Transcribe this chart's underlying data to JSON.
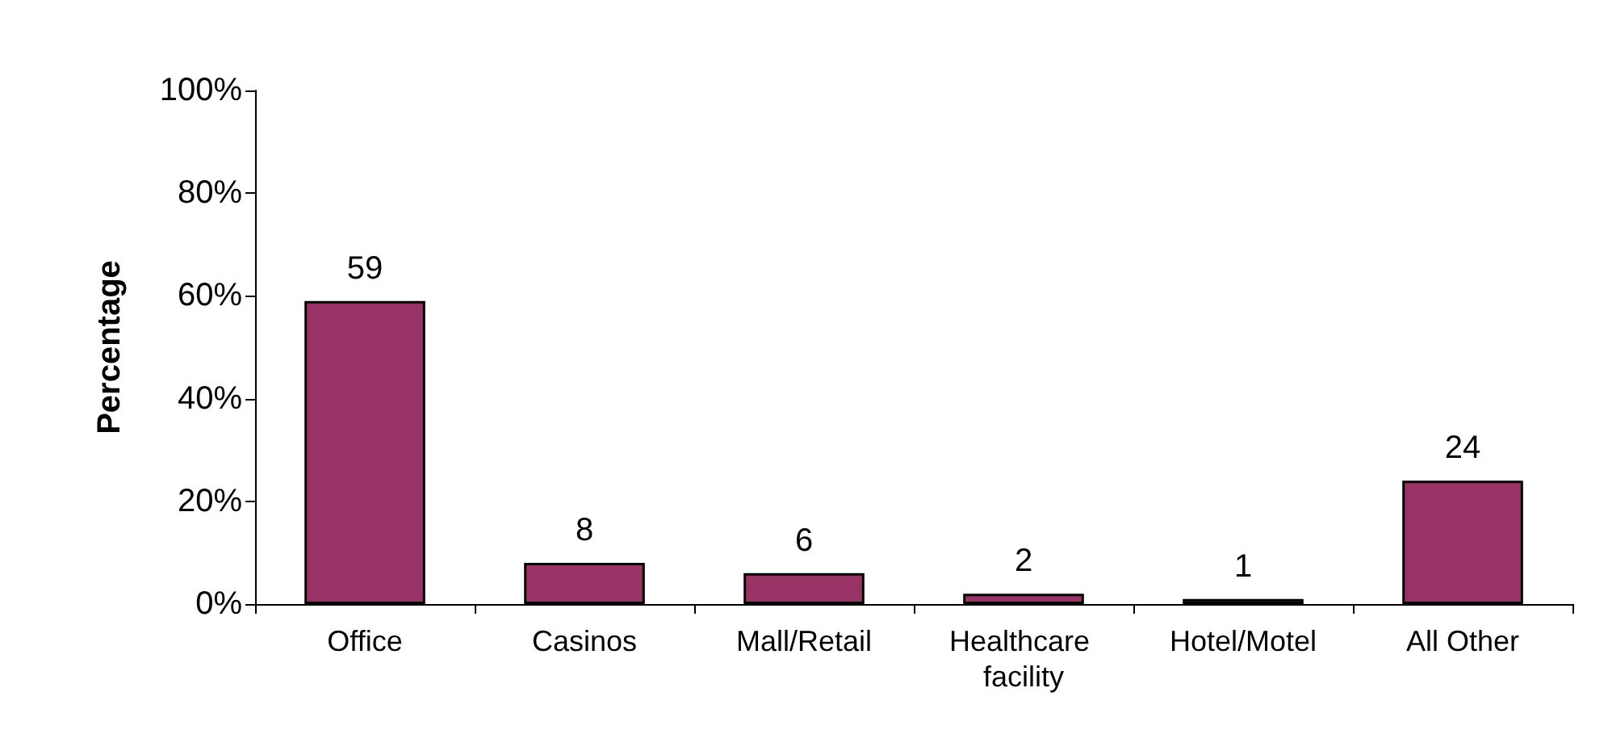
{
  "chart_data": {
    "type": "bar",
    "ylabel": "Percentage",
    "categories": [
      "Office",
      "Casinos",
      "Mall/Retail",
      "Healthcare facility",
      "Hotel/Motel",
      "All Other"
    ],
    "values": [
      59,
      8,
      6,
      2,
      1,
      24
    ],
    "color": "#993366",
    "ylim": [
      0,
      100
    ],
    "yticks": [
      {
        "value": 0,
        "label": "0%"
      },
      {
        "value": 20,
        "label": "20%"
      },
      {
        "value": 40,
        "label": "40%"
      },
      {
        "value": 60,
        "label": "60%"
      },
      {
        "value": 80,
        "label": "80%"
      },
      {
        "value": 100,
        "label": "100%"
      }
    ],
    "data_labels": true,
    "grid": false
  }
}
